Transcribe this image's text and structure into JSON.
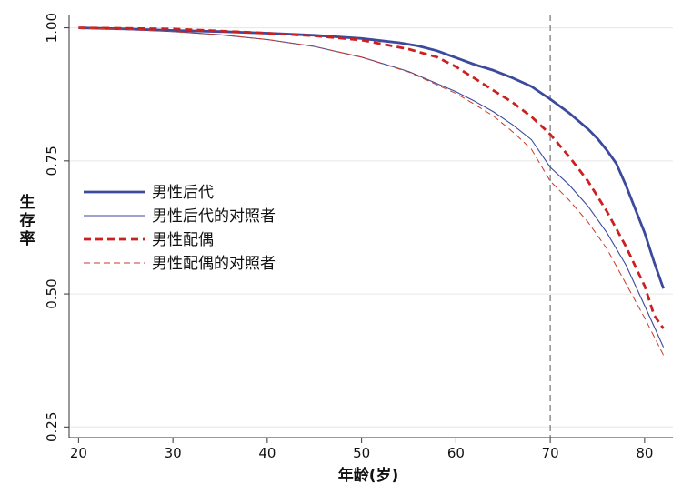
{
  "chart_data": {
    "type": "line",
    "title": "",
    "xlabel": "年龄(岁)",
    "ylabel": "生存率",
    "xlim": [
      19,
      83
    ],
    "ylim": [
      0.23,
      1.025
    ],
    "xticks": [
      20,
      30,
      40,
      50,
      60,
      70,
      80
    ],
    "yticks": [
      0.25,
      0.5,
      0.75,
      1.0
    ],
    "ytick_labels": [
      "0.25",
      "0.50",
      "0.75",
      "1.00"
    ],
    "grid": "horizontal",
    "reference_line": {
      "x": 70,
      "style": "dashed",
      "color": "#888888"
    },
    "legend_position": "middle-left",
    "series": [
      {
        "name": "男性后代",
        "style": "solid-thick",
        "color": "#3b4a9c",
        "x": [
          20,
          25,
          30,
          35,
          40,
          45,
          50,
          52,
          54,
          56,
          58,
          60,
          62,
          64,
          66,
          68,
          70,
          72,
          74,
          75,
          76,
          77,
          78,
          79,
          80,
          81,
          82
        ],
        "y": [
          1.0,
          0.998,
          0.995,
          0.993,
          0.99,
          0.986,
          0.98,
          0.976,
          0.972,
          0.966,
          0.957,
          0.944,
          0.931,
          0.92,
          0.906,
          0.89,
          0.866,
          0.84,
          0.81,
          0.792,
          0.77,
          0.745,
          0.705,
          0.66,
          0.615,
          0.56,
          0.51
        ]
      },
      {
        "name": "男性后代的对照者",
        "style": "solid-thin",
        "color": "#3b4a9c",
        "x": [
          20,
          25,
          30,
          35,
          40,
          45,
          50,
          55,
          60,
          62,
          64,
          66,
          68,
          70,
          72,
          74,
          76,
          78,
          80,
          82
        ],
        "y": [
          1.0,
          0.997,
          0.993,
          0.987,
          0.978,
          0.965,
          0.945,
          0.918,
          0.88,
          0.862,
          0.842,
          0.818,
          0.79,
          0.738,
          0.705,
          0.665,
          0.615,
          0.555,
          0.478,
          0.4
        ]
      },
      {
        "name": "男性配偶",
        "style": "dashed-thick",
        "color": "#cc2020",
        "x": [
          20,
          25,
          30,
          35,
          40,
          45,
          50,
          55,
          58,
          60,
          62,
          64,
          66,
          68,
          70,
          72,
          74,
          76,
          78,
          80,
          81,
          82
        ],
        "y": [
          1.0,
          0.999,
          0.998,
          0.994,
          0.99,
          0.985,
          0.977,
          0.96,
          0.945,
          0.927,
          0.905,
          0.882,
          0.86,
          0.833,
          0.8,
          0.758,
          0.712,
          0.655,
          0.59,
          0.515,
          0.46,
          0.435
        ]
      },
      {
        "name": "男性配偶的对照者",
        "style": "dashed-thin",
        "color": "#cc3a2a",
        "x": [
          20,
          25,
          30,
          35,
          40,
          45,
          50,
          55,
          60,
          62,
          64,
          66,
          68,
          70,
          72,
          74,
          76,
          78,
          80,
          82
        ],
        "y": [
          1.0,
          0.997,
          0.993,
          0.987,
          0.978,
          0.965,
          0.945,
          0.917,
          0.877,
          0.856,
          0.834,
          0.805,
          0.772,
          0.712,
          0.676,
          0.635,
          0.585,
          0.52,
          0.455,
          0.385
        ]
      }
    ]
  }
}
